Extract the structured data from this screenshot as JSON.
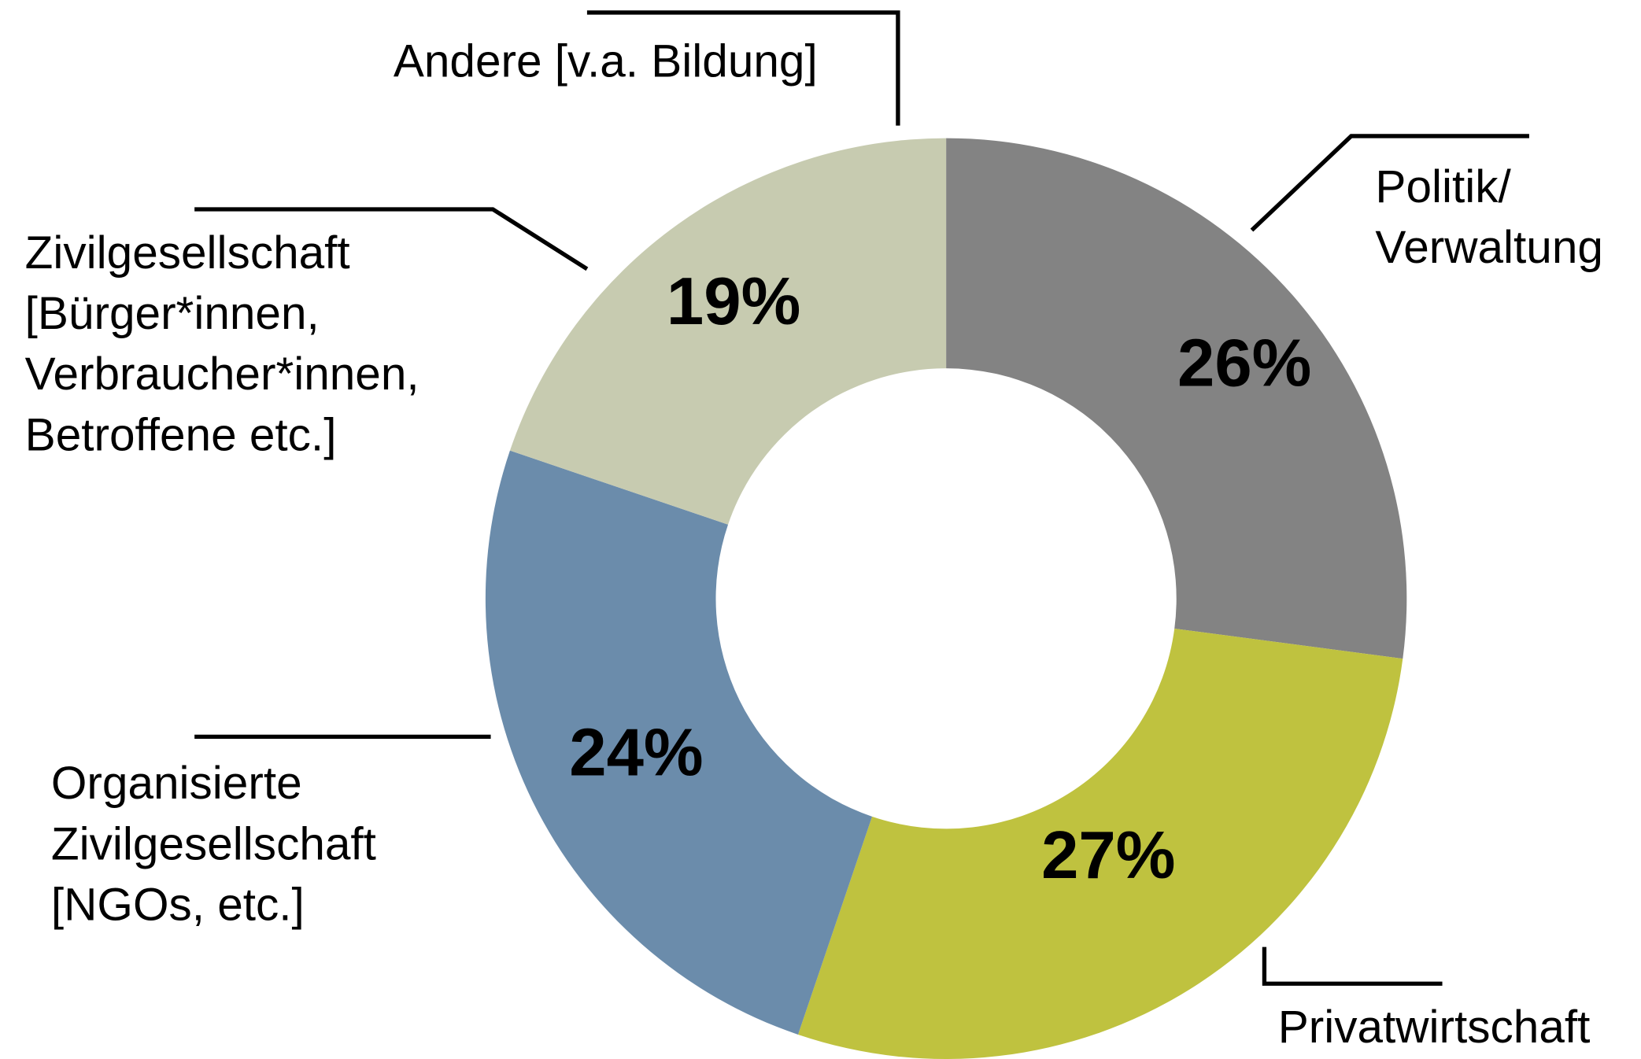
{
  "chart_data": {
    "type": "donut",
    "categories": [
      "Politik/\nVerwaltung",
      "Privatwirtschaft",
      "Organisierte\nZivilgesellschaft\n[NGOs, etc.]",
      "Zivilgesellschaft\n[Bürger*innen,\nVerbraucher*innen,\nBetroffene etc.]",
      "Andere [v.a. Bildung]"
    ],
    "values": [
      26,
      27,
      24,
      19,
      0
    ],
    "value_labels": [
      "26%",
      "27%",
      "24%",
      "19%",
      null
    ],
    "colors": [
      "#838383",
      "#bfc23f",
      "#6b8cab",
      "#c7cbb0",
      "#b0b0b0"
    ]
  }
}
